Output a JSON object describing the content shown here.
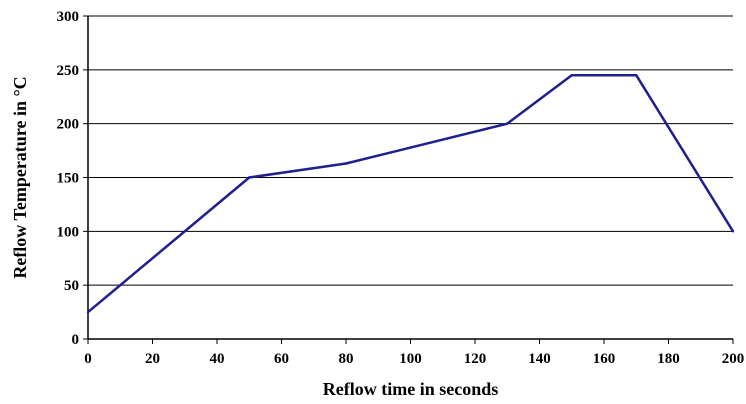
{
  "chart_data": {
    "type": "line",
    "xlabel": "Reflow time in seconds",
    "ylabel": "Reflow Temperature in °C",
    "xlim": [
      0,
      200
    ],
    "ylim": [
      0,
      300
    ],
    "x_ticks": [
      0,
      20,
      40,
      60,
      80,
      100,
      120,
      140,
      160,
      180,
      200
    ],
    "y_ticks": [
      0,
      50,
      100,
      150,
      200,
      250,
      300
    ],
    "grid": "horizontal",
    "legend": "none",
    "series": [
      {
        "color": "#1f1f8f",
        "points": [
          {
            "x": 0,
            "y": 25
          },
          {
            "x": 50,
            "y": 150
          },
          {
            "x": 80,
            "y": 163
          },
          {
            "x": 130,
            "y": 200
          },
          {
            "x": 150,
            "y": 245
          },
          {
            "x": 170,
            "y": 245
          },
          {
            "x": 200,
            "y": 100
          }
        ]
      }
    ]
  }
}
